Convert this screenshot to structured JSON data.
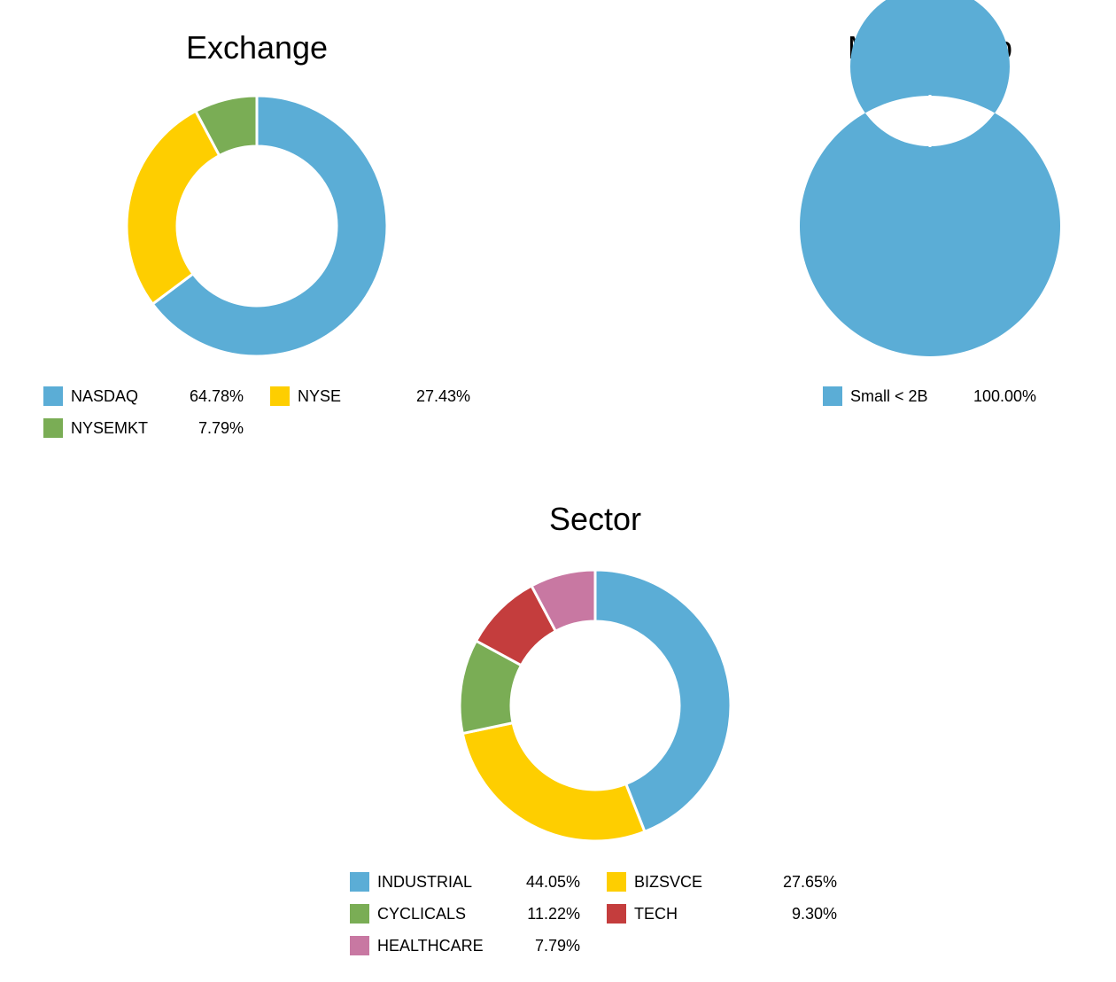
{
  "colors": {
    "blue": "#5badd6",
    "yellow": "#fece00",
    "green": "#7aad55",
    "red": "#c43d3d",
    "pink": "#c878a2"
  },
  "chart_data": [
    {
      "type": "pie",
      "donut": true,
      "title": "Exchange",
      "slices": [
        {
          "label": "NASDAQ",
          "value": 64.78,
          "display": "64.78%",
          "color": "#5badd6"
        },
        {
          "label": "NYSE",
          "value": 27.43,
          "display": "27.43%",
          "color": "#fece00"
        },
        {
          "label": "NYSEMKT",
          "value": 7.79,
          "display": "7.79%",
          "color": "#7aad55"
        }
      ],
      "legend_position": "bottom"
    },
    {
      "type": "pie",
      "donut": true,
      "title": "Market Cap",
      "slices": [
        {
          "label": "Small < 2B",
          "value": 100.0,
          "display": "100.00%",
          "color": "#5badd6"
        }
      ],
      "legend_position": "bottom"
    },
    {
      "type": "pie",
      "donut": true,
      "title": "Sector",
      "slices": [
        {
          "label": "INDUSTRIAL",
          "value": 44.05,
          "display": "44.05%",
          "color": "#5badd6"
        },
        {
          "label": "BIZSVCE",
          "value": 27.65,
          "display": "27.65%",
          "color": "#fece00"
        },
        {
          "label": "CYCLICALS",
          "value": 11.22,
          "display": "11.22%",
          "color": "#7aad55"
        },
        {
          "label": "TECH",
          "value": 9.3,
          "display": "9.30%",
          "color": "#c43d3d"
        },
        {
          "label": "HEALTHCARE",
          "value": 7.79,
          "display": "7.79%",
          "color": "#c878a2"
        }
      ],
      "legend_position": "bottom"
    }
  ]
}
